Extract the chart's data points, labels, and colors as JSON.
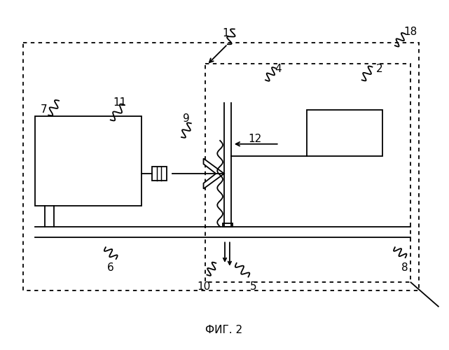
{
  "fig_width": 6.41,
  "fig_height": 5.0,
  "dpi": 100,
  "bg_color": "#ffffff",
  "line_color": "#000000",
  "caption": "ФИГ. 2",
  "caption_fontsize": 11,
  "label_fontsize": 11
}
